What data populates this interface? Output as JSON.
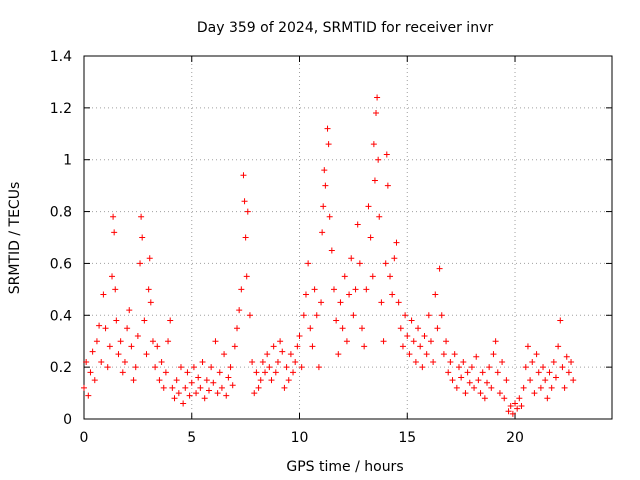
{
  "chart_data": {
    "type": "scatter",
    "title": "Day 359 of 2024, SRMTID for receiver invr",
    "xlabel": "GPS time / hours",
    "ylabel": "SRMTID / TECUs",
    "xlim": [
      0,
      24.5
    ],
    "ylim": [
      0,
      1.4
    ],
    "xticks": [
      0,
      5,
      10,
      15,
      20
    ],
    "xtick_labels": [
      "0",
      "5",
      "10",
      "15",
      "20"
    ],
    "yticks": [
      0,
      0.2,
      0.4,
      0.6,
      0.8,
      1.0,
      1.2,
      1.4
    ],
    "ytick_labels": [
      "0",
      "0.2",
      "0.4",
      "0.6",
      "0.8",
      "1",
      "1.2",
      "1.4"
    ],
    "grid": true,
    "marker": "+",
    "series": [
      {
        "name": "SRMTID",
        "color": "#ff0000",
        "points": [
          [
            0.0,
            0.12
          ],
          [
            0.1,
            0.22
          ],
          [
            0.2,
            0.09
          ],
          [
            0.3,
            0.18
          ],
          [
            0.4,
            0.26
          ],
          [
            0.5,
            0.15
          ],
          [
            0.6,
            0.3
          ],
          [
            0.7,
            0.36
          ],
          [
            0.8,
            0.22
          ],
          [
            0.9,
            0.48
          ],
          [
            1.0,
            0.35
          ],
          [
            1.1,
            0.2
          ],
          [
            1.2,
            0.28
          ],
          [
            1.3,
            0.55
          ],
          [
            1.35,
            0.78
          ],
          [
            1.4,
            0.72
          ],
          [
            1.45,
            0.5
          ],
          [
            1.5,
            0.38
          ],
          [
            1.6,
            0.25
          ],
          [
            1.7,
            0.3
          ],
          [
            1.8,
            0.18
          ],
          [
            1.9,
            0.22
          ],
          [
            2.0,
            0.35
          ],
          [
            2.1,
            0.42
          ],
          [
            2.2,
            0.28
          ],
          [
            2.3,
            0.15
          ],
          [
            2.4,
            0.2
          ],
          [
            2.5,
            0.32
          ],
          [
            2.6,
            0.6
          ],
          [
            2.65,
            0.78
          ],
          [
            2.7,
            0.7
          ],
          [
            2.8,
            0.38
          ],
          [
            2.9,
            0.25
          ],
          [
            3.0,
            0.5
          ],
          [
            3.05,
            0.62
          ],
          [
            3.1,
            0.45
          ],
          [
            3.2,
            0.3
          ],
          [
            3.3,
            0.2
          ],
          [
            3.4,
            0.28
          ],
          [
            3.5,
            0.15
          ],
          [
            3.6,
            0.22
          ],
          [
            3.7,
            0.12
          ],
          [
            3.8,
            0.18
          ],
          [
            3.9,
            0.3
          ],
          [
            4.0,
            0.38
          ],
          [
            4.1,
            0.12
          ],
          [
            4.2,
            0.08
          ],
          [
            4.3,
            0.15
          ],
          [
            4.4,
            0.1
          ],
          [
            4.5,
            0.2
          ],
          [
            4.6,
            0.06
          ],
          [
            4.7,
            0.12
          ],
          [
            4.8,
            0.18
          ],
          [
            4.9,
            0.09
          ],
          [
            5.0,
            0.14
          ],
          [
            5.1,
            0.2
          ],
          [
            5.2,
            0.1
          ],
          [
            5.3,
            0.16
          ],
          [
            5.4,
            0.12
          ],
          [
            5.5,
            0.22
          ],
          [
            5.6,
            0.08
          ],
          [
            5.7,
            0.15
          ],
          [
            5.8,
            0.11
          ],
          [
            5.9,
            0.2
          ],
          [
            6.0,
            0.14
          ],
          [
            6.1,
            0.3
          ],
          [
            6.2,
            0.1
          ],
          [
            6.3,
            0.18
          ],
          [
            6.4,
            0.12
          ],
          [
            6.5,
            0.25
          ],
          [
            6.6,
            0.09
          ],
          [
            6.7,
            0.16
          ],
          [
            6.8,
            0.2
          ],
          [
            6.9,
            0.13
          ],
          [
            7.0,
            0.28
          ],
          [
            7.1,
            0.35
          ],
          [
            7.2,
            0.42
          ],
          [
            7.3,
            0.5
          ],
          [
            7.4,
            0.94
          ],
          [
            7.45,
            0.84
          ],
          [
            7.5,
            0.7
          ],
          [
            7.55,
            0.55
          ],
          [
            7.6,
            0.8
          ],
          [
            7.7,
            0.4
          ],
          [
            7.8,
            0.22
          ],
          [
            7.9,
            0.1
          ],
          [
            8.0,
            0.18
          ],
          [
            8.1,
            0.12
          ],
          [
            8.2,
            0.15
          ],
          [
            8.3,
            0.22
          ],
          [
            8.4,
            0.18
          ],
          [
            8.5,
            0.25
          ],
          [
            8.6,
            0.2
          ],
          [
            8.7,
            0.15
          ],
          [
            8.8,
            0.28
          ],
          [
            8.9,
            0.18
          ],
          [
            9.0,
            0.22
          ],
          [
            9.1,
            0.3
          ],
          [
            9.2,
            0.26
          ],
          [
            9.3,
            0.12
          ],
          [
            9.4,
            0.2
          ],
          [
            9.5,
            0.15
          ],
          [
            9.6,
            0.25
          ],
          [
            9.7,
            0.18
          ],
          [
            9.8,
            0.22
          ],
          [
            9.9,
            0.28
          ],
          [
            10.0,
            0.32
          ],
          [
            10.1,
            0.2
          ],
          [
            10.2,
            0.4
          ],
          [
            10.3,
            0.48
          ],
          [
            10.4,
            0.6
          ],
          [
            10.5,
            0.35
          ],
          [
            10.6,
            0.28
          ],
          [
            10.7,
            0.5
          ],
          [
            10.8,
            0.4
          ],
          [
            10.9,
            0.2
          ],
          [
            11.0,
            0.45
          ],
          [
            11.05,
            0.72
          ],
          [
            11.1,
            0.82
          ],
          [
            11.15,
            0.96
          ],
          [
            11.2,
            0.9
          ],
          [
            11.3,
            1.12
          ],
          [
            11.35,
            1.06
          ],
          [
            11.4,
            0.78
          ],
          [
            11.5,
            0.65
          ],
          [
            11.6,
            0.5
          ],
          [
            11.7,
            0.38
          ],
          [
            11.8,
            0.25
          ],
          [
            11.9,
            0.45
          ],
          [
            12.0,
            0.35
          ],
          [
            12.1,
            0.55
          ],
          [
            12.2,
            0.3
          ],
          [
            12.3,
            0.48
          ],
          [
            12.4,
            0.62
          ],
          [
            12.5,
            0.4
          ],
          [
            12.6,
            0.5
          ],
          [
            12.7,
            0.75
          ],
          [
            12.8,
            0.6
          ],
          [
            12.9,
            0.35
          ],
          [
            13.0,
            0.28
          ],
          [
            13.1,
            0.5
          ],
          [
            13.2,
            0.82
          ],
          [
            13.3,
            0.7
          ],
          [
            13.4,
            0.55
          ],
          [
            13.45,
            1.06
          ],
          [
            13.5,
            0.92
          ],
          [
            13.55,
            1.18
          ],
          [
            13.6,
            1.24
          ],
          [
            13.65,
            1.0
          ],
          [
            13.7,
            0.78
          ],
          [
            13.8,
            0.45
          ],
          [
            13.9,
            0.3
          ],
          [
            14.0,
            0.6
          ],
          [
            14.05,
            1.02
          ],
          [
            14.1,
            0.9
          ],
          [
            14.2,
            0.55
          ],
          [
            14.3,
            0.48
          ],
          [
            14.4,
            0.62
          ],
          [
            14.5,
            0.68
          ],
          [
            14.6,
            0.45
          ],
          [
            14.7,
            0.35
          ],
          [
            14.8,
            0.28
          ],
          [
            14.9,
            0.4
          ],
          [
            15.0,
            0.32
          ],
          [
            15.1,
            0.25
          ],
          [
            15.2,
            0.38
          ],
          [
            15.3,
            0.3
          ],
          [
            15.4,
            0.22
          ],
          [
            15.5,
            0.35
          ],
          [
            15.6,
            0.28
          ],
          [
            15.7,
            0.2
          ],
          [
            15.8,
            0.32
          ],
          [
            15.9,
            0.25
          ],
          [
            16.0,
            0.4
          ],
          [
            16.1,
            0.3
          ],
          [
            16.2,
            0.22
          ],
          [
            16.3,
            0.48
          ],
          [
            16.4,
            0.35
          ],
          [
            16.5,
            0.58
          ],
          [
            16.6,
            0.4
          ],
          [
            16.7,
            0.25
          ],
          [
            16.8,
            0.3
          ],
          [
            16.9,
            0.18
          ],
          [
            17.0,
            0.22
          ],
          [
            17.1,
            0.15
          ],
          [
            17.2,
            0.25
          ],
          [
            17.3,
            0.12
          ],
          [
            17.4,
            0.2
          ],
          [
            17.5,
            0.16
          ],
          [
            17.6,
            0.22
          ],
          [
            17.7,
            0.1
          ],
          [
            17.8,
            0.18
          ],
          [
            17.9,
            0.14
          ],
          [
            18.0,
            0.2
          ],
          [
            18.1,
            0.12
          ],
          [
            18.2,
            0.24
          ],
          [
            18.3,
            0.15
          ],
          [
            18.4,
            0.1
          ],
          [
            18.5,
            0.18
          ],
          [
            18.6,
            0.08
          ],
          [
            18.7,
            0.14
          ],
          [
            18.8,
            0.2
          ],
          [
            18.9,
            0.12
          ],
          [
            19.0,
            0.25
          ],
          [
            19.1,
            0.3
          ],
          [
            19.2,
            0.18
          ],
          [
            19.3,
            0.1
          ],
          [
            19.4,
            0.22
          ],
          [
            19.5,
            0.08
          ],
          [
            19.6,
            0.15
          ],
          [
            19.7,
            0.03
          ],
          [
            19.8,
            0.05
          ],
          [
            19.9,
            0.02
          ],
          [
            20.0,
            0.06
          ],
          [
            20.1,
            0.04
          ],
          [
            20.2,
            0.08
          ],
          [
            20.3,
            0.05
          ],
          [
            20.4,
            0.12
          ],
          [
            20.5,
            0.2
          ],
          [
            20.6,
            0.28
          ],
          [
            20.7,
            0.15
          ],
          [
            20.8,
            0.22
          ],
          [
            20.9,
            0.1
          ],
          [
            21.0,
            0.25
          ],
          [
            21.1,
            0.18
          ],
          [
            21.2,
            0.12
          ],
          [
            21.3,
            0.2
          ],
          [
            21.4,
            0.15
          ],
          [
            21.5,
            0.08
          ],
          [
            21.6,
            0.18
          ],
          [
            21.7,
            0.12
          ],
          [
            21.8,
            0.22
          ],
          [
            21.9,
            0.16
          ],
          [
            22.0,
            0.28
          ],
          [
            22.1,
            0.38
          ],
          [
            22.2,
            0.2
          ],
          [
            22.3,
            0.12
          ],
          [
            22.4,
            0.24
          ],
          [
            22.5,
            0.18
          ],
          [
            22.6,
            0.22
          ],
          [
            22.7,
            0.15
          ]
        ]
      }
    ]
  }
}
